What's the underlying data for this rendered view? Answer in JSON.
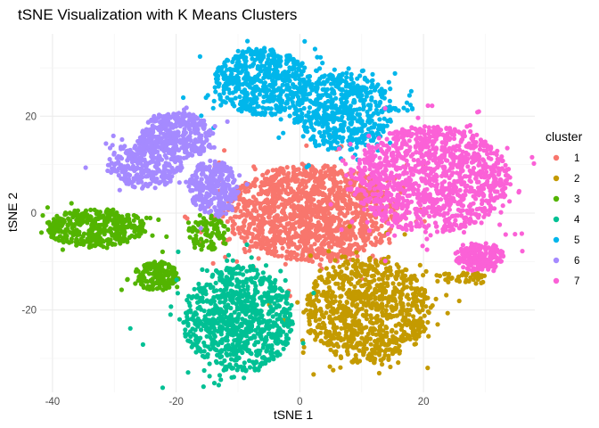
{
  "chart_data": {
    "type": "scatter",
    "title": "tSNE Visualization with K Means Clusters",
    "xlabel": "tSNE 1",
    "ylabel": "tSNE 2",
    "xlim": [
      -42,
      38
    ],
    "ylim": [
      -37,
      37
    ],
    "x_ticks": [
      -40,
      -20,
      0,
      20
    ],
    "y_ticks": [
      -20,
      0,
      20
    ],
    "grid": true,
    "legend": {
      "title": "cluster",
      "placement": "right",
      "entries": [
        "1",
        "2",
        "3",
        "4",
        "5",
        "6",
        "7"
      ]
    },
    "colors": {
      "1": "#F8766D",
      "2": "#C49A00",
      "3": "#53B400",
      "4": "#00C094",
      "5": "#00B6EB",
      "6": "#A58AFF",
      "7": "#FB61D7"
    },
    "clusters": [
      {
        "cluster": "1",
        "blobs": [
          {
            "cx": 2,
            "cy": 0,
            "rx": 14,
            "ry": 10,
            "n": 1400
          }
        ]
      },
      {
        "cluster": "2",
        "blobs": [
          {
            "cx": 11,
            "cy": -20,
            "rx": 10,
            "ry": 11,
            "n": 900
          },
          {
            "cx": 26,
            "cy": -13,
            "rx": 4,
            "ry": 1.5,
            "n": 40
          }
        ]
      },
      {
        "cluster": "3",
        "blobs": [
          {
            "cx": -33,
            "cy": -3,
            "rx": 8,
            "ry": 4,
            "n": 420
          },
          {
            "cx": -23,
            "cy": -13,
            "rx": 3.5,
            "ry": 3,
            "n": 170
          },
          {
            "cx": -15,
            "cy": -4,
            "rx": 3,
            "ry": 4,
            "n": 90
          }
        ]
      },
      {
        "cluster": "4",
        "blobs": [
          {
            "cx": -10,
            "cy": -22,
            "rx": 9,
            "ry": 11,
            "n": 850
          }
        ]
      },
      {
        "cluster": "5",
        "blobs": [
          {
            "cx": -6,
            "cy": 27,
            "rx": 8,
            "ry": 7,
            "n": 550
          },
          {
            "cx": 7,
            "cy": 21,
            "rx": 8,
            "ry": 8,
            "n": 550
          },
          {
            "cx": 17,
            "cy": 22,
            "rx": 2,
            "ry": 1,
            "n": 10
          }
        ]
      },
      {
        "cluster": "6",
        "blobs": [
          {
            "cx": -20,
            "cy": 16,
            "rx": 6,
            "ry": 5,
            "n": 350
          },
          {
            "cx": -25,
            "cy": 10,
            "rx": 6,
            "ry": 5,
            "n": 300
          },
          {
            "cx": -14,
            "cy": 5,
            "rx": 4,
            "ry": 6,
            "n": 280
          }
        ]
      },
      {
        "cluster": "7",
        "blobs": [
          {
            "cx": 21,
            "cy": 7,
            "rx": 13,
            "ry": 11,
            "n": 1200
          },
          {
            "cx": 29,
            "cy": -9,
            "rx": 4,
            "ry": 3,
            "n": 200
          }
        ]
      }
    ]
  }
}
